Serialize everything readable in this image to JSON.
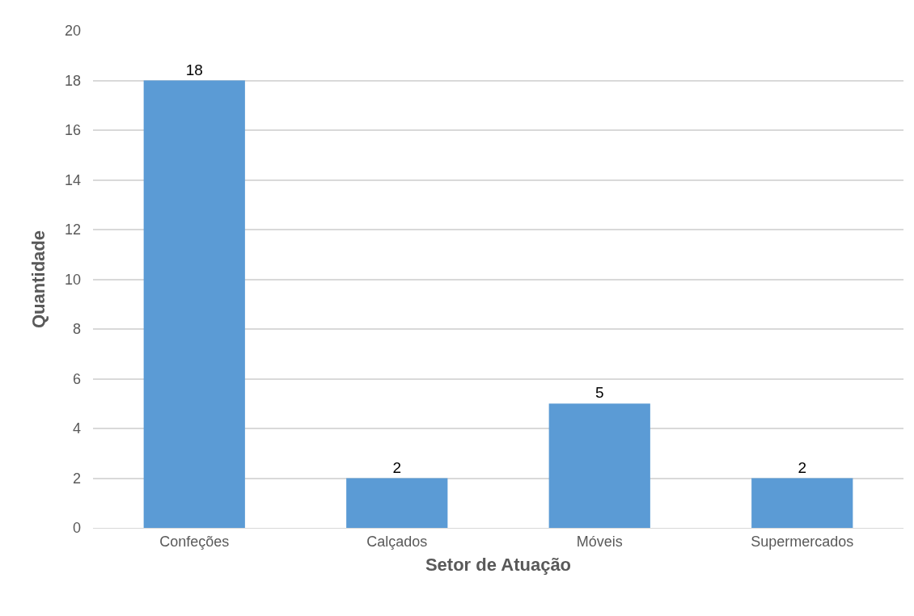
{
  "chart_data": {
    "type": "bar",
    "xlabel": "Setor de Atuação",
    "ylabel": "Quantidade",
    "categories": [
      "Confeções",
      "Calçados",
      "Móveis",
      "Supermercados"
    ],
    "values": [
      18,
      2,
      5,
      2
    ],
    "color": "#5b9bd5",
    "ylim": [
      0,
      20
    ],
    "yticks": [
      0,
      2,
      4,
      6,
      8,
      10,
      12,
      14,
      16,
      18,
      20
    ],
    "grid": "y",
    "data_labels": true
  }
}
